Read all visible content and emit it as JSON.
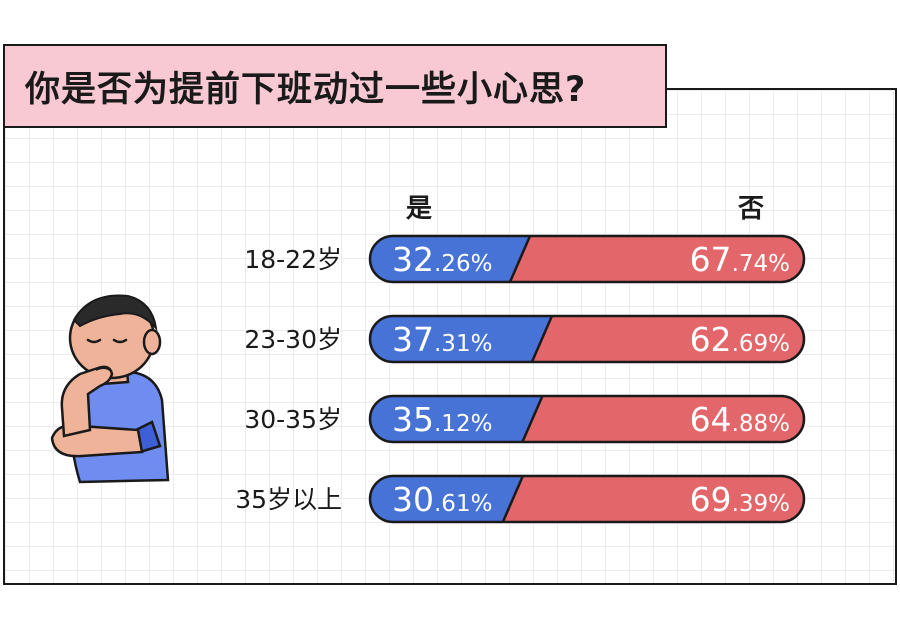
{
  "title": "你是否为提前下班动过一些小心思?",
  "chart_data": {
    "type": "bar",
    "stacked": true,
    "orientation": "horizontal",
    "categories": [
      "18-22岁",
      "23-30岁",
      "30-35岁",
      "35岁以上"
    ],
    "series": [
      {
        "name": "是",
        "values": [
          32.26,
          37.31,
          35.12,
          30.61
        ],
        "color": "#4772d6"
      },
      {
        "name": "否",
        "values": [
          67.74,
          62.69,
          64.88,
          69.39
        ],
        "color": "#e3676a"
      }
    ],
    "unit": "%",
    "xlim": [
      0,
      100
    ],
    "legend": "top"
  },
  "colors": {
    "title_bg": "#f8c9d3",
    "yes": "#4772d6",
    "no": "#e3676a",
    "outline": "#1a1a1a"
  },
  "icons": {
    "illustration": "thinking-person-icon"
  }
}
